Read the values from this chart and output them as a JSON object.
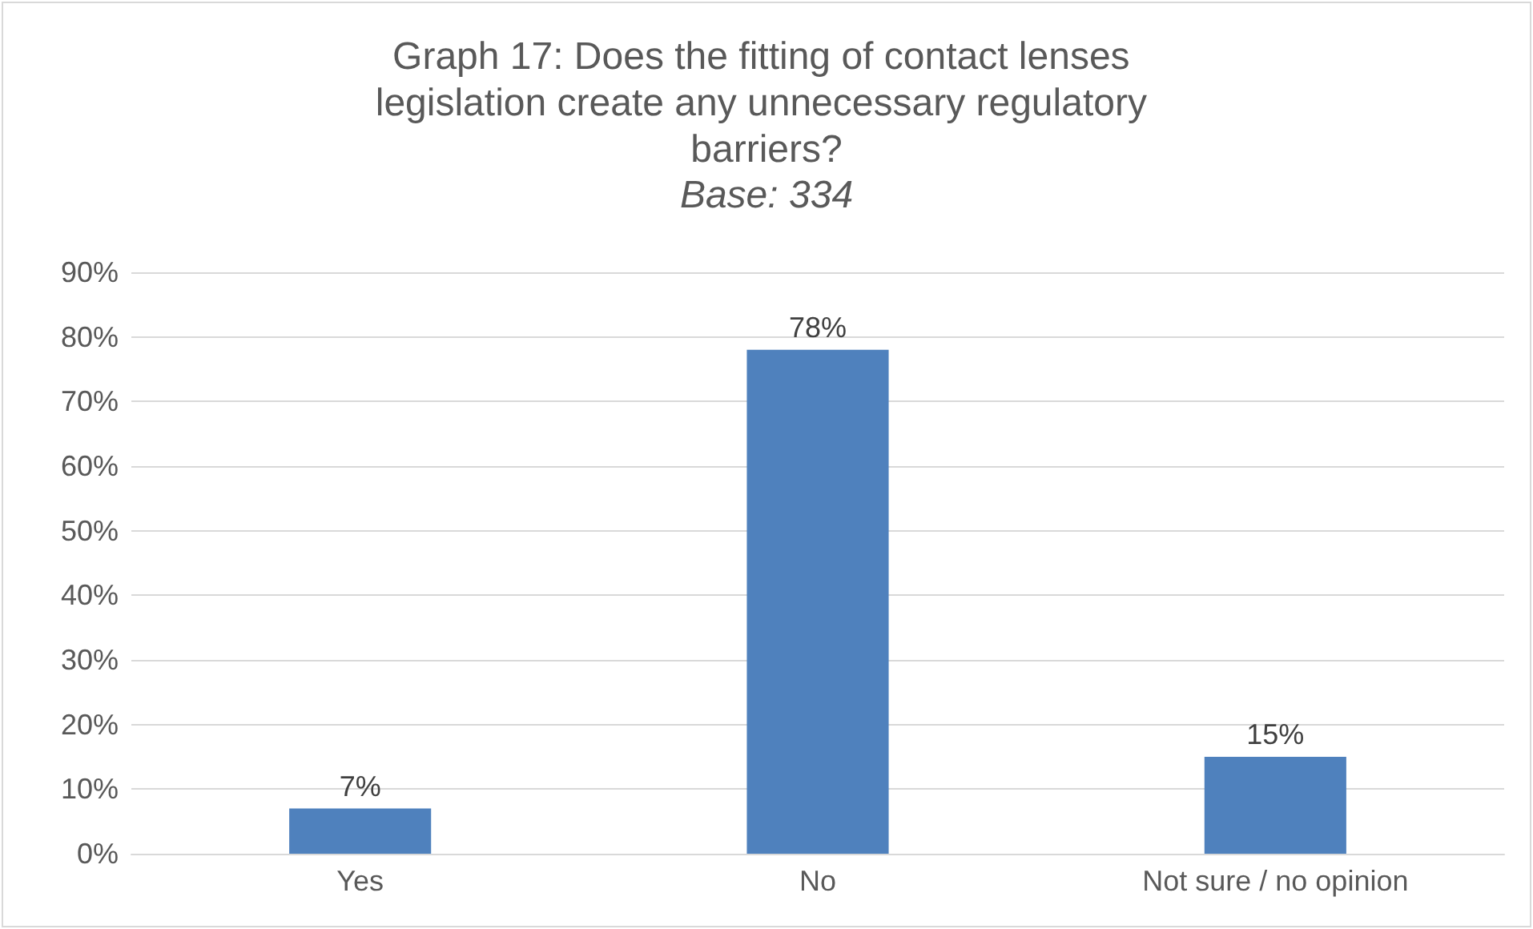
{
  "chart_data": {
    "type": "bar",
    "title": "Graph 17: Does the fitting of contact lenses legislation create any unnecessary regulatory barriers?",
    "subtitle": "Base: 334",
    "categories": [
      "Yes",
      "No",
      "Not sure / no opinion"
    ],
    "values": [
      7,
      78,
      15
    ],
    "value_labels": [
      "7%",
      "78%",
      "15%"
    ],
    "color": "#4f81bd",
    "ylim": [
      0,
      90
    ],
    "yticks": [
      {
        "value": 0,
        "label": "0%"
      },
      {
        "value": 10,
        "label": "10%"
      },
      {
        "value": 20,
        "label": "20%"
      },
      {
        "value": 30,
        "label": "30%"
      },
      {
        "value": 40,
        "label": "40%"
      },
      {
        "value": 50,
        "label": "50%"
      },
      {
        "value": 60,
        "label": "60%"
      },
      {
        "value": 70,
        "label": "70%"
      },
      {
        "value": 80,
        "label": "80%"
      },
      {
        "value": 90,
        "label": "90%"
      }
    ],
    "grid": "y"
  }
}
